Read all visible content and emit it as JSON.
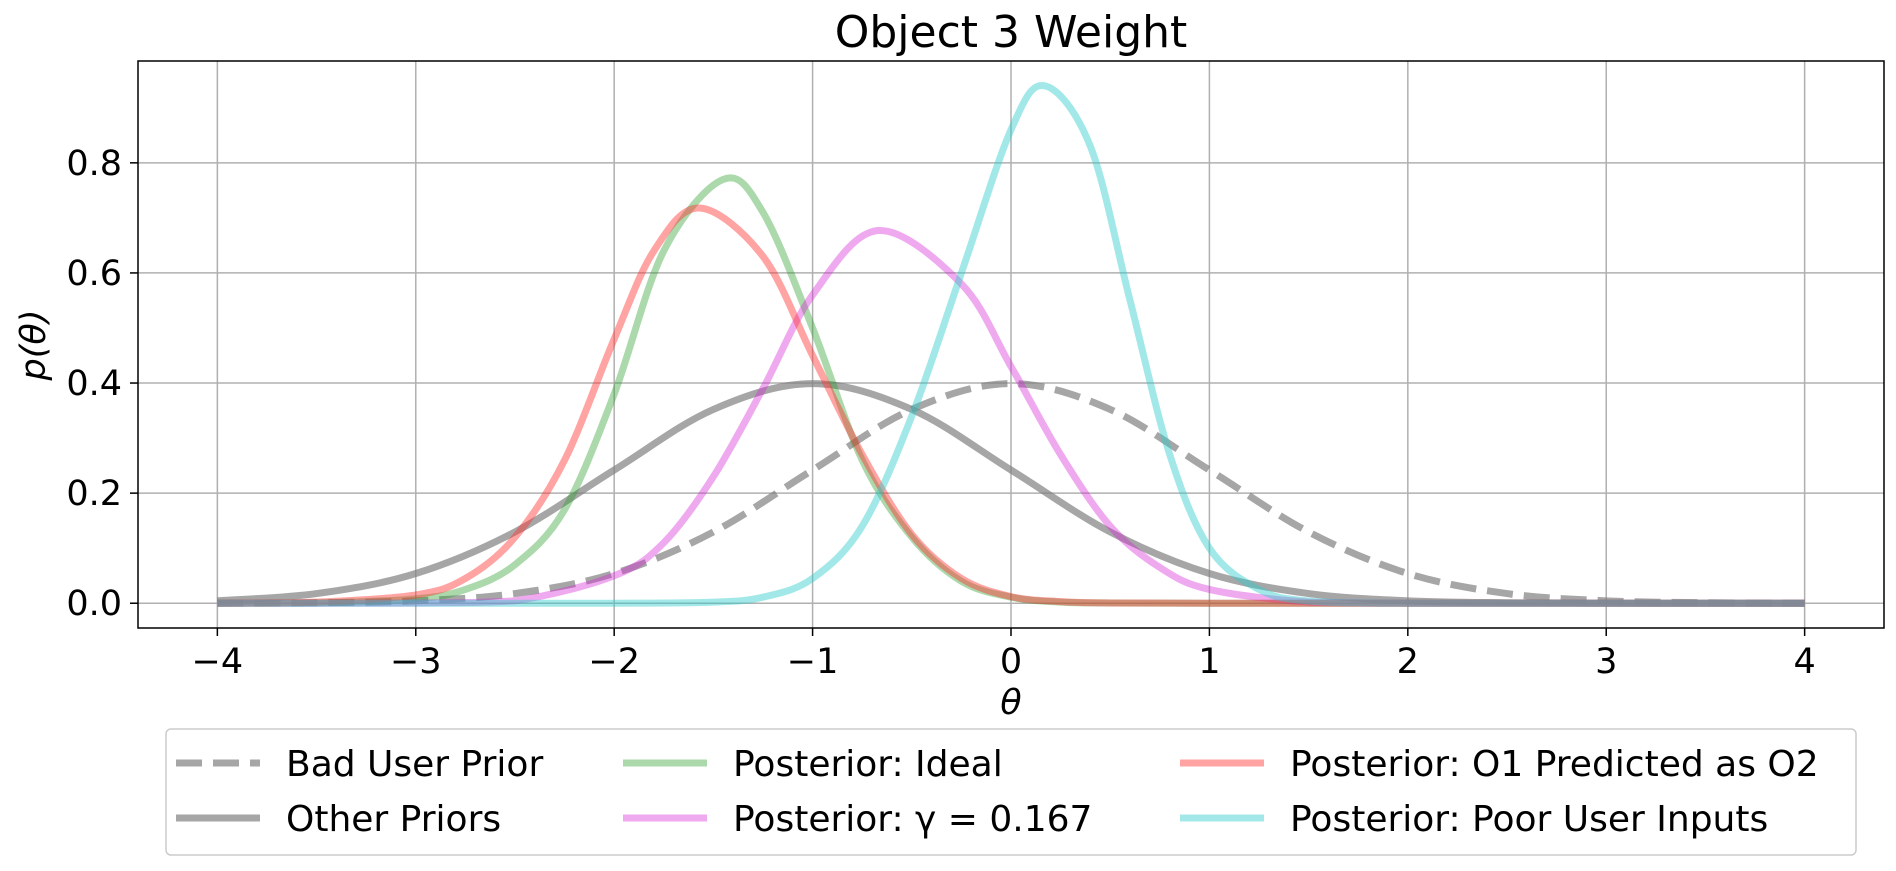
{
  "chart_data": {
    "type": "line",
    "title": "Object 3 Weight",
    "xlabel": "θ",
    "ylabel": "p(θ)",
    "xlim": [
      -4.4,
      4.4
    ],
    "ylim": [
      -0.045,
      0.985
    ],
    "xticks": [
      -4,
      -3,
      -2,
      -1,
      0,
      1,
      2,
      3,
      4
    ],
    "xtick_labels": [
      "−4",
      "−3",
      "−2",
      "−1",
      "0",
      "1",
      "2",
      "3",
      "4"
    ],
    "yticks": [
      0.0,
      0.2,
      0.4,
      0.6,
      0.8
    ],
    "ytick_labels": [
      "0.0",
      "0.2",
      "0.4",
      "0.6",
      "0.8"
    ],
    "grid": true,
    "legend_position": "below the plot, centered, 3 columns",
    "series": [
      {
        "name": "Bad User Prior",
        "color": "#808080",
        "style": "dashed",
        "opacity": 0.7,
        "x": [
          -4,
          -3.5,
          -3,
          -2.5,
          -2,
          -1.5,
          -1,
          -0.5,
          0,
          0.5,
          1,
          1.5,
          2,
          2.5,
          3,
          3.5,
          4
        ],
        "y": [
          0.0001,
          0.0009,
          0.0044,
          0.0175,
          0.054,
          0.1295,
          0.242,
          0.3521,
          0.399,
          0.3521,
          0.242,
          0.1295,
          0.054,
          0.0175,
          0.0044,
          0.0009,
          0.0001
        ]
      },
      {
        "name": "Other Priors",
        "color": "#808080",
        "style": "solid",
        "opacity": 0.7,
        "x": [
          -4,
          -3.5,
          -3,
          -2.5,
          -2,
          -1.5,
          -1,
          -0.5,
          0,
          0.5,
          1,
          1.5,
          2,
          2.5,
          3,
          3.5,
          4
        ],
        "y": [
          0.0044,
          0.0175,
          0.054,
          0.1295,
          0.242,
          0.3521,
          0.399,
          0.3521,
          0.242,
          0.1295,
          0.054,
          0.0175,
          0.0044,
          0.0009,
          0.0001,
          0.0,
          0.0
        ]
      },
      {
        "name": "Posterior: Ideal",
        "color": "#2ca02c",
        "style": "solid",
        "opacity": 0.4,
        "x": [
          -4,
          -3.5,
          -3,
          -2.75,
          -2.5,
          -2.25,
          -2,
          -1.75,
          -1.45,
          -1.25,
          -1,
          -0.75,
          -0.5,
          -0.25,
          0,
          0.25,
          0.5,
          1,
          1.5,
          2,
          3,
          4
        ],
        "y": [
          0.0,
          0.0006,
          0.008,
          0.025,
          0.07,
          0.17,
          0.38,
          0.64,
          0.77,
          0.71,
          0.5,
          0.26,
          0.12,
          0.04,
          0.011,
          0.002,
          0.0005,
          0.0,
          0.0,
          0.0,
          0.0,
          0.0
        ]
      },
      {
        "name": "Posterior: γ = 0.167",
        "color": "#d62ad6",
        "style": "solid",
        "opacity": 0.4,
        "x": [
          -4,
          -3.5,
          -3,
          -2.5,
          -2,
          -1.75,
          -1.5,
          -1.25,
          -1,
          -0.67,
          -0.25,
          0,
          0.25,
          0.5,
          0.75,
          1,
          1.5,
          2,
          2.5,
          3,
          4
        ],
        "y": [
          0.0,
          0.0,
          0.0005,
          0.0045,
          0.05,
          0.11,
          0.23,
          0.39,
          0.56,
          0.677,
          0.58,
          0.43,
          0.27,
          0.14,
          0.065,
          0.025,
          0.002,
          0.0,
          0.0,
          0.0,
          0.0
        ]
      },
      {
        "name": "Posterior: O1 Predicted as O2",
        "color": "#ff3333",
        "style": "solid",
        "opacity": 0.45,
        "x": [
          -4,
          -3.5,
          -3,
          -2.75,
          -2.5,
          -2.25,
          -2,
          -1.8,
          -1.57,
          -1.25,
          -1,
          -0.75,
          -0.5,
          -0.25,
          0,
          0.25,
          0.5,
          1,
          2,
          3,
          4
        ],
        "y": [
          0.0,
          0.002,
          0.015,
          0.045,
          0.12,
          0.26,
          0.48,
          0.64,
          0.718,
          0.63,
          0.45,
          0.27,
          0.125,
          0.045,
          0.012,
          0.003,
          0.0005,
          0.0,
          0.0,
          0.0,
          0.0
        ]
      },
      {
        "name": "Posterior: Poor User Inputs",
        "color": "#33cccc",
        "style": "solid",
        "opacity": 0.45,
        "x": [
          -4,
          -3,
          -2,
          -1.5,
          -1.25,
          -1,
          -0.75,
          -0.5,
          -0.25,
          0,
          0.17,
          0.4,
          0.6,
          0.8,
          1,
          1.25,
          1.5,
          2,
          3,
          4
        ],
        "y": [
          0.0,
          0.0,
          0.0,
          0.002,
          0.011,
          0.045,
          0.14,
          0.34,
          0.6,
          0.86,
          0.94,
          0.83,
          0.55,
          0.27,
          0.1,
          0.025,
          0.004,
          0.0,
          0.0,
          0.0
        ]
      }
    ]
  }
}
